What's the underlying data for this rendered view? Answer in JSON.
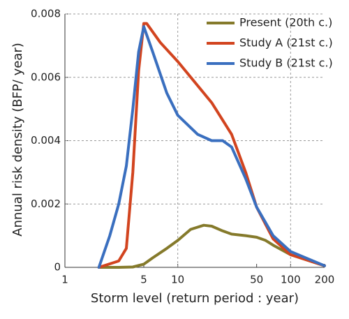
{
  "chart_data": {
    "type": "line",
    "xlabel": "Storm level (return period : year)",
    "ylabel": "Annual risk density (BFP/ year)",
    "xscale": "log",
    "xlim": [
      1,
      200
    ],
    "xticks": [
      1,
      5,
      10,
      50,
      100,
      200
    ],
    "ylim": [
      0,
      0.008
    ],
    "yticks": [
      0,
      0.002,
      0.004,
      0.006,
      0.008
    ],
    "grid": true,
    "legend": "upper right",
    "series": [
      {
        "name": "Present (20th c.)",
        "color": "#857a2b",
        "x": [
          2,
          3,
          4,
          5,
          6,
          8,
          10,
          13,
          17,
          20,
          25,
          30,
          40,
          50,
          60,
          70,
          100,
          200
        ],
        "values": [
          0,
          0,
          1e-05,
          0.0001,
          0.0003,
          0.0006,
          0.00085,
          0.0012,
          0.00133,
          0.0013,
          0.00115,
          0.00105,
          0.001,
          0.00095,
          0.00085,
          0.0007,
          0.0004,
          5e-05
        ]
      },
      {
        "name": "Study A (21st c.)",
        "color": "#d2441f",
        "x": [
          2,
          3,
          3.5,
          4,
          4.5,
          5,
          5.3,
          7,
          10,
          20,
          30,
          40,
          50,
          70,
          100,
          200
        ],
        "values": [
          0,
          0.0002,
          0.0006,
          0.003,
          0.0062,
          0.0077,
          0.0077,
          0.0071,
          0.0065,
          0.0052,
          0.0042,
          0.003,
          0.0019,
          0.0009,
          0.0004,
          5e-05
        ]
      },
      {
        "name": "Study B (21st c.)",
        "color": "#3a6fbf",
        "x": [
          2,
          2.5,
          3,
          3.5,
          4,
          4.5,
          5,
          6,
          8,
          10,
          15,
          20,
          25,
          30,
          40,
          50,
          70,
          100,
          200
        ],
        "values": [
          0,
          0.001,
          0.002,
          0.0032,
          0.005,
          0.0068,
          0.0076,
          0.0068,
          0.0055,
          0.0048,
          0.0042,
          0.004,
          0.004,
          0.0038,
          0.0028,
          0.0019,
          0.001,
          0.0005,
          5e-05
        ]
      }
    ]
  }
}
